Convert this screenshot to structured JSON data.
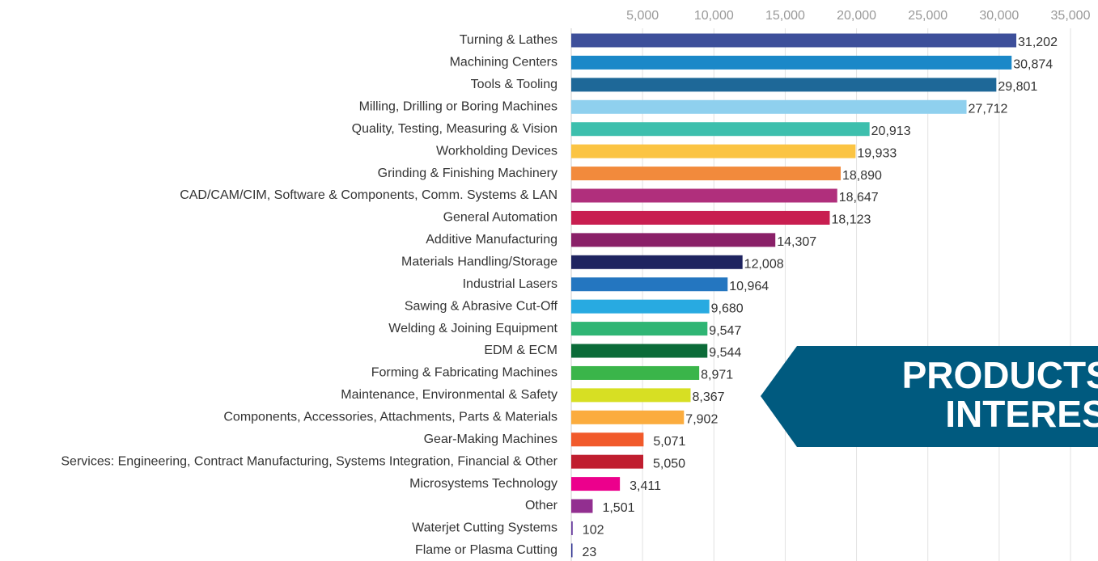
{
  "chart_data": {
    "type": "barh",
    "categories": [
      "Turning & Lathes",
      "Machining Centers",
      "Tools & Tooling",
      "Milling, Drilling or Boring Machines",
      "Quality, Testing, Measuring & Vision",
      "Workholding Devices",
      "Grinding & Finishing Machinery",
      "CAD/CAM/CIM, Software & Components, Comm. Systems & LAN",
      "General Automation",
      "Additive Manufacturing",
      "Materials Handling/Storage",
      "Industrial Lasers",
      "Sawing & Abrasive Cut-Off",
      "Welding & Joining Equipment",
      "EDM & ECM",
      "Forming & Fabricating Machines",
      "Maintenance, Environmental & Safety",
      "Components, Accessories, Attachments, Parts & Materials",
      "Gear-Making Machines",
      "Services: Engineering, Contract Manufacturing, Systems Integration, Financial & Other",
      "Microsystems Technology",
      "Other",
      "Waterjet Cutting Systems",
      "Flame or Plasma Cutting"
    ],
    "values": [
      31202,
      30874,
      29801,
      27712,
      20913,
      19933,
      18890,
      18647,
      18123,
      14307,
      12008,
      10964,
      9680,
      9547,
      9544,
      8971,
      8367,
      7902,
      5071,
      5050,
      3411,
      1501,
      102,
      23
    ],
    "value_labels": [
      "31,202",
      "30,874",
      "29,801",
      "27,712",
      "20,913",
      "19,933",
      "18,890",
      "18,647",
      "18,123",
      "14,307",
      "12,008",
      "10,964",
      "9,680",
      "9,547",
      "9,544",
      "8,971",
      "8,367",
      "7,902",
      "5,071",
      "5,050",
      "3,411",
      "1,501",
      "102",
      "23"
    ],
    "colors": [
      "#3d4f9a",
      "#1b88c8",
      "#1e6898",
      "#8fd0ee",
      "#3dbfad",
      "#fbc443",
      "#f28a3c",
      "#b02f7c",
      "#c81e50",
      "#8a2068",
      "#1f2460",
      "#2476c0",
      "#28aae1",
      "#2fb574",
      "#0b6b38",
      "#3ab54a",
      "#d7df23",
      "#fbac3e",
      "#f15a2b",
      "#c01e2f",
      "#ec008c",
      "#922f90",
      "#6b3fa0",
      "#2e3192"
    ],
    "xlim": [
      0,
      35000
    ],
    "xticks": [
      {
        "value": 5000,
        "label": "5,000"
      },
      {
        "value": 10000,
        "label": "10,000"
      },
      {
        "value": 15000,
        "label": "15,000"
      },
      {
        "value": 20000,
        "label": "20,000"
      },
      {
        "value": 25000,
        "label": "25,000"
      },
      {
        "value": 30000,
        "label": "30,000"
      },
      {
        "value": 35000,
        "label": "35,000"
      }
    ],
    "grid": true,
    "annotations": [
      "PRODUCTS OF",
      "INTEREST"
    ]
  }
}
